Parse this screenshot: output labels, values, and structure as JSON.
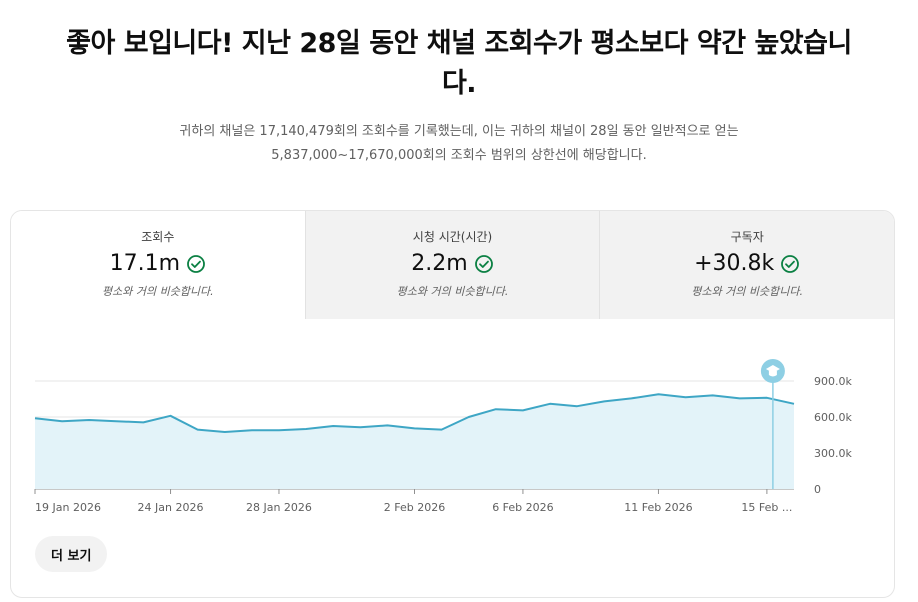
{
  "headline": "좋아 보입니다! 지난 28일 동안 채널 조회수가 평소보다 약간 높았습니다.",
  "description": "귀하의 채널은 17,140,479회의 조회수를 기록했는데, 이는 귀하의 채널이 28일 동안 일반적으로 얻는 5,837,000~17,670,000회의 조회수 범위의 상한선에 해당합니다.",
  "metrics": [
    {
      "label": "조회수",
      "value": "17.1m",
      "note": "평소와 거의 비슷합니다.",
      "active": true
    },
    {
      "label": "시청 시간(시간)",
      "value": "2.2m",
      "note": "평소와 거의 비슷합니다.",
      "active": false
    },
    {
      "label": "구독자",
      "value": "+30.8k",
      "note": "평소와 거의 비슷합니다.",
      "active": false
    }
  ],
  "colors": {
    "line": "#3ea6c5",
    "area": "#e3f3f9",
    "marker": "#8ecfe4",
    "check": "#0b8043"
  },
  "icons": {
    "metric_status": "check-circle-icon",
    "chart_marker": "graduation-cap-icon"
  },
  "chart_data": {
    "type": "area",
    "x": [
      "2026-01-19",
      "2026-01-20",
      "2026-01-21",
      "2026-01-22",
      "2026-01-23",
      "2026-01-24",
      "2026-01-25",
      "2026-01-26",
      "2026-01-27",
      "2026-01-28",
      "2026-01-29",
      "2026-01-30",
      "2026-01-31",
      "2026-02-01",
      "2026-02-02",
      "2026-02-03",
      "2026-02-04",
      "2026-02-05",
      "2026-02-06",
      "2026-02-07",
      "2026-02-08",
      "2026-02-09",
      "2026-02-10",
      "2026-02-11",
      "2026-02-12",
      "2026-02-13",
      "2026-02-14",
      "2026-02-15",
      "2026-02-16"
    ],
    "series": [
      {
        "values": [
          590000,
          565000,
          575000,
          565000,
          555000,
          610000,
          495000,
          475000,
          490000,
          490000,
          500000,
          525000,
          515000,
          530000,
          505000,
          495000,
          600000,
          665000,
          655000,
          710000,
          690000,
          730000,
          755000,
          790000,
          765000,
          780000,
          755000,
          760000,
          710000
        ]
      }
    ],
    "xticks": [
      {
        "x": "2026-01-19",
        "label": "19 Jan 2026"
      },
      {
        "x": "2026-01-24",
        "label": "24 Jan 2026"
      },
      {
        "x": "2026-01-28",
        "label": "28 Jan 2026"
      },
      {
        "x": "2026-02-02",
        "label": "2 Feb 2026"
      },
      {
        "x": "2026-02-06",
        "label": "6 Feb 2026"
      },
      {
        "x": "2026-02-11",
        "label": "11 Feb 2026"
      },
      {
        "x": "2026-02-15",
        "label": "15 Feb ..."
      }
    ],
    "yticks": [
      {
        "value": 0,
        "label": "0"
      },
      {
        "value": 300000,
        "label": "300.0k"
      },
      {
        "value": 600000,
        "label": "600.0k"
      },
      {
        "value": 900000,
        "label": "900.0k"
      }
    ],
    "ylim": [
      0,
      900000
    ],
    "marker_x": "2026-02-15",
    "grid": true
  },
  "more_button": "더 보기"
}
